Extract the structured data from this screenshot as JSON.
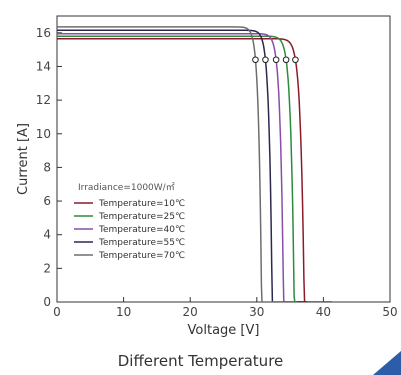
{
  "caption": "Different Temperature",
  "accent_color": "#2d5da8",
  "chart_data": {
    "type": "line",
    "title": "",
    "xlabel": "Voltage [V]",
    "ylabel": "Current [A]",
    "xlim": [
      0,
      50
    ],
    "ylim": [
      0,
      17
    ],
    "xticks": [
      0,
      10,
      20,
      30,
      40,
      50
    ],
    "yticks": [
      0,
      2,
      4,
      6,
      8,
      10,
      12,
      14,
      16
    ],
    "grid": false,
    "legend_title": "Irradiance=1000W/㎡",
    "legend_position": "lower-left",
    "series": [
      {
        "name": "Temperature=10℃",
        "color": "#8b1a2b",
        "isc": 15.65,
        "voc": 41.3,
        "vmp": 35.8,
        "imp": 14.4
      },
      {
        "name": "Temperature=25℃",
        "color": "#2e8b3e",
        "isc": 15.8,
        "voc": 40.0,
        "vmp": 34.4,
        "imp": 14.4
      },
      {
        "name": "Temperature=40℃",
        "color": "#8a4ea8",
        "isc": 15.95,
        "voc": 38.7,
        "vmp": 32.9,
        "imp": 14.4
      },
      {
        "name": "Temperature=55℃",
        "color": "#2c2850",
        "isc": 16.15,
        "voc": 37.6,
        "vmp": 31.3,
        "imp": 14.4
      },
      {
        "name": "Temperature=70℃",
        "color": "#6e6e6e",
        "isc": 16.35,
        "voc": 36.0,
        "vmp": 29.8,
        "imp": 14.4
      }
    ]
  }
}
